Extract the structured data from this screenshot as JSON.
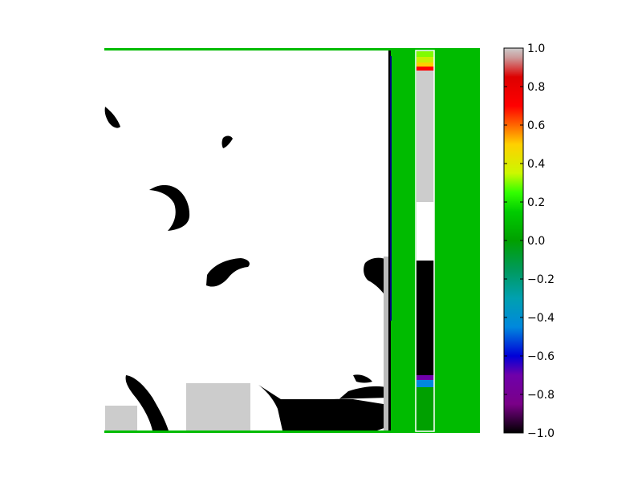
{
  "chart_data": {
    "type": "heatmap",
    "title": "",
    "xlabel": "",
    "ylabel": "",
    "colormap": "nipy_spectral",
    "clim": [
      -1.0,
      1.0
    ],
    "colorbar": {
      "orientation": "vertical",
      "placement": "right",
      "ticks": [
        1.0,
        0.8,
        0.6,
        0.4,
        0.2,
        0.0,
        -0.2,
        -0.4,
        -0.6,
        -0.8,
        -1.0
      ],
      "tick_labels": [
        "1.0",
        "0.8",
        "0.6",
        "0.4",
        "0.2",
        "0.0",
        "−0.2",
        "−0.4",
        "−0.6",
        "−0.8",
        "−1.0"
      ],
      "colors": [
        [
          -1.0,
          "#000000"
        ],
        [
          -0.85,
          "#7a0088"
        ],
        [
          -0.7,
          "#6f00aa"
        ],
        [
          -0.6,
          "#0000d8"
        ],
        [
          -0.45,
          "#0088dd"
        ],
        [
          -0.3,
          "#00a0b0"
        ],
        [
          -0.15,
          "#009a5a"
        ],
        [
          0.0,
          "#00a000"
        ],
        [
          0.15,
          "#00cc00"
        ],
        [
          0.25,
          "#33ff00"
        ],
        [
          0.35,
          "#ccf800"
        ],
        [
          0.5,
          "#ffd000"
        ],
        [
          0.6,
          "#ff6600"
        ],
        [
          0.7,
          "#ff0000"
        ],
        [
          0.85,
          "#dd0000"
        ],
        [
          0.95,
          "#cc9999"
        ],
        [
          1.0,
          "#cccccc"
        ]
      ]
    },
    "background_value": 0.1,
    "palette": {
      "background_green": "#00bb00",
      "white": "#ffffff",
      "black": "#000000",
      "light_gray": "#cccccc",
      "mid_gray": "#bbbbbb",
      "dark_green": "#00a000",
      "navy": "#000080"
    },
    "inset_bar": {
      "segments": [
        {
          "value": 0.4,
          "color": "#c8f000"
        },
        {
          "value": 0.5,
          "color": "#ffd000"
        },
        {
          "value": 0.75,
          "color": "#ff0000"
        },
        {
          "value": 0.95,
          "color": "#cccccc"
        },
        {
          "value": 1.0,
          "color": "#ffffff"
        },
        {
          "value": -1.0,
          "color": "#000000"
        },
        {
          "value": -0.7,
          "color": "#6f00aa"
        },
        {
          "value": -0.45,
          "color": "#0088dd"
        },
        {
          "value": 0.0,
          "color": "#00a000"
        }
      ]
    }
  }
}
